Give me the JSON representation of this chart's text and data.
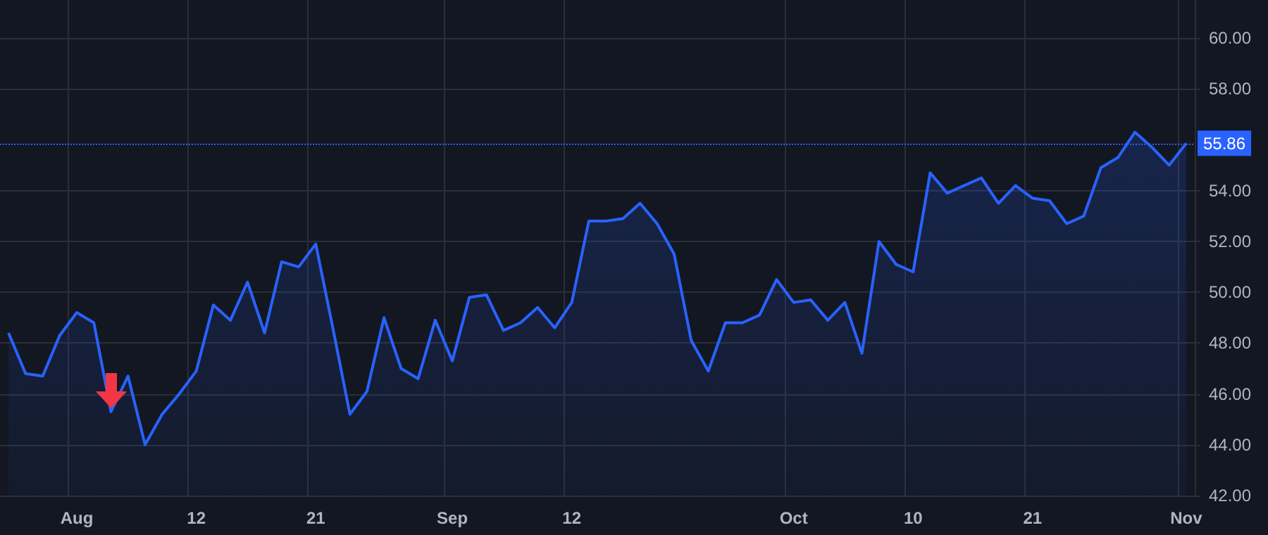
{
  "chart_data": {
    "type": "area",
    "categories": [
      null,
      null,
      null,
      null,
      "Aug",
      null,
      null,
      null,
      null,
      null,
      null,
      "12",
      null,
      null,
      null,
      null,
      null,
      null,
      "21",
      null,
      null,
      null,
      null,
      null,
      null,
      null,
      "Sep",
      null,
      null,
      null,
      null,
      null,
      null,
      "12",
      null,
      null,
      null,
      null,
      null,
      null,
      null,
      null,
      null,
      null,
      null,
      null,
      "Oct",
      null,
      null,
      null,
      null,
      null,
      null,
      "10",
      null,
      null,
      null,
      null,
      null,
      null,
      "21",
      null,
      null,
      null,
      null,
      null,
      null,
      null,
      null,
      "Nov"
    ],
    "series": [
      {
        "color": "#2962ff",
        "values": [
          48.4,
          46.8,
          46.7,
          48.3,
          49.2,
          48.8,
          45.3,
          46.7,
          44.0,
          45.2,
          46.0,
          46.9,
          49.5,
          48.9,
          50.4,
          48.4,
          51.2,
          51.0,
          51.9,
          48.6,
          45.2,
          46.1,
          49.0,
          47.0,
          46.6,
          48.9,
          47.3,
          49.8,
          49.9,
          48.5,
          48.8,
          49.4,
          48.6,
          49.6,
          52.8,
          52.8,
          52.9,
          53.5,
          52.7,
          51.5,
          48.1,
          46.9,
          48.8,
          48.8,
          49.1,
          50.5,
          49.6,
          49.7,
          48.9,
          49.6,
          47.6,
          52.0,
          51.1,
          50.8,
          54.7,
          53.9,
          54.2,
          54.5,
          53.5,
          54.2,
          53.7,
          53.6,
          52.7,
          53.0,
          54.9,
          55.3,
          56.3,
          55.7,
          55.0,
          55.86
        ]
      }
    ],
    "ylim": [
      42,
      61.5
    ],
    "yticks": [
      {
        "value": 42,
        "label": "42.00"
      },
      {
        "value": 44,
        "label": "44.00"
      },
      {
        "value": 46,
        "label": "46.00"
      },
      {
        "value": 48,
        "label": "48.00"
      },
      {
        "value": 50,
        "label": "50.00"
      },
      {
        "value": 52,
        "label": "52.00"
      },
      {
        "value": 54,
        "label": "54.00"
      },
      {
        "value": 58,
        "label": "58.00"
      },
      {
        "value": 60,
        "label": "60.00"
      }
    ],
    "grid": true,
    "marker": "none",
    "ref_lines": [
      {
        "axis": "y",
        "value": 55.86,
        "label": "55.86",
        "color": "#2962ff",
        "line_style": "dotted"
      }
    ]
  }
}
